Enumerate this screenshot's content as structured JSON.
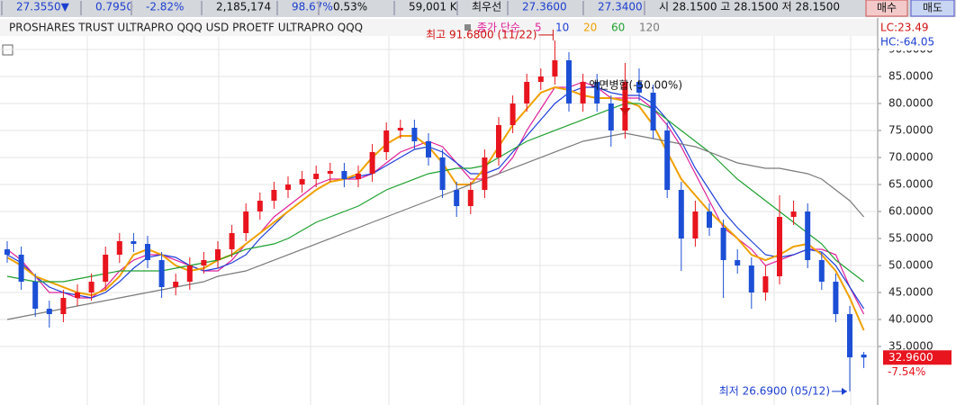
{
  "toolbar": {
    "items": [
      {
        "text": "27.3550▼",
        "color": "#1c3fd0"
      },
      {
        "text": "0.7950",
        "color": "#1c3fd0"
      },
      {
        "text": "-2.82%",
        "color": "#1c3fd0"
      },
      {
        "text": "2,185,174",
        "color": "#111"
      },
      {
        "text": "98.67%",
        "color": "#1c3fd0"
      },
      {
        "text": "0.53%",
        "color": "#111"
      },
      {
        "text": "59,001 K",
        "color": "#111"
      },
      {
        "text": "최우선",
        "color": "#111"
      },
      {
        "text": "27.3600",
        "color": "#1c3fd0"
      },
      {
        "text": "27.3400",
        "color": "#1c3fd0"
      },
      {
        "text": "시 28.1500 고 28.1500 저 28.1500",
        "color": "#111"
      }
    ],
    "buy": "매수",
    "sell": "매도"
  },
  "chart_data": {
    "type": "candlestick",
    "title": "PROSHARES TRUST ULTRAPRO QQQ USD  PROETF ULTRAPRO QQQ",
    "ma_label": "종가 단순",
    "up_color": "#e8141e",
    "down_color": "#1c4fd6",
    "open": [
      53,
      52,
      47,
      42,
      41,
      44,
      45,
      47,
      52,
      54.5,
      54,
      51,
      46,
      47,
      50,
      51,
      53,
      56,
      60,
      62,
      64,
      65,
      66,
      67,
      67.5,
      66,
      67,
      71,
      75,
      75.5,
      73,
      70,
      64,
      61,
      64,
      70,
      76,
      80,
      84,
      85,
      88,
      80,
      84,
      80,
      75,
      84,
      82,
      75,
      64,
      55,
      60,
      57,
      51,
      50,
      45,
      48,
      59,
      60,
      51,
      47,
      41,
      33.5
    ],
    "high": [
      54.5,
      53.5,
      48.5,
      43.5,
      45.5,
      46.5,
      48.5,
      53.5,
      56,
      56,
      55.5,
      52.5,
      48.5,
      51.5,
      52.5,
      54.5,
      57.5,
      61.5,
      63.5,
      65.5,
      66.5,
      67.5,
      68.5,
      69,
      69,
      68.5,
      72.5,
      76.5,
      77,
      77,
      74.5,
      71.5,
      65.5,
      65.5,
      71.5,
      77.5,
      81.5,
      85.5,
      86.5,
      91.68,
      89.5,
      85.5,
      85.5,
      81.5,
      87.5,
      86.5,
      83.5,
      76.5,
      65.5,
      62,
      61.5,
      58.5,
      53,
      51.5,
      50,
      63,
      62,
      61.5,
      52.5,
      48.5,
      42.5,
      34
    ],
    "low": [
      50.5,
      45.5,
      40.5,
      38.5,
      39.5,
      42.5,
      43.5,
      45.5,
      50.5,
      52.5,
      49.5,
      44,
      44.5,
      45.5,
      48.5,
      49.5,
      51.5,
      54.5,
      58.5,
      60.5,
      62.5,
      63.5,
      64.5,
      65.5,
      64.5,
      64.5,
      65.5,
      69.5,
      73.5,
      71.5,
      68.5,
      62.5,
      59,
      59.5,
      62.5,
      68.5,
      74.5,
      78.5,
      82.5,
      83.5,
      78.5,
      78.5,
      78.5,
      72,
      73.5,
      80.5,
      73.5,
      62.5,
      49,
      53.5,
      55.5,
      44,
      48.5,
      42,
      43.5,
      46.5,
      57.5,
      49.5,
      45.5,
      39.5,
      26.69,
      31
    ],
    "close": [
      52,
      47,
      42,
      41,
      44,
      45,
      47,
      52,
      54.5,
      54,
      51,
      46,
      47,
      50,
      51,
      53,
      56,
      60,
      62,
      64,
      65,
      66,
      67,
      67.5,
      66,
      67,
      71,
      75,
      75.5,
      73,
      70,
      64,
      61,
      64,
      70,
      76,
      80,
      84,
      85,
      88,
      80,
      84,
      80,
      75,
      84,
      82,
      75,
      64,
      55,
      60,
      57,
      51,
      50,
      45,
      48,
      59,
      60,
      51,
      47,
      41,
      33,
      32.96
    ],
    "series": [
      {
        "name": "5",
        "color": "#e0209a",
        "values": [
          53,
          51,
          48,
          45,
          45,
          44,
          44,
          46,
          49,
          51,
          52,
          52,
          51,
          50,
          49,
          49,
          51,
          54,
          56,
          59,
          61,
          63,
          65,
          66,
          66,
          66,
          67,
          69,
          71,
          72,
          73,
          72,
          69,
          66,
          66,
          67,
          70,
          75,
          79,
          83,
          83,
          84,
          83,
          81,
          81,
          81,
          79,
          76,
          72,
          67,
          62,
          57,
          55,
          53,
          50,
          51,
          52,
          53,
          53,
          52,
          46,
          41
        ]
      },
      {
        "name": "10",
        "color": "#1f3fd8",
        "values": [
          52,
          50.5,
          48,
          46,
          45,
          44.5,
          44,
          45,
          47,
          49.5,
          51.5,
          52,
          51.5,
          50,
          49,
          49.5,
          50.5,
          52,
          55,
          57.5,
          60,
          62,
          64,
          65.5,
          66,
          66.5,
          67,
          68.5,
          70,
          71.5,
          72,
          71,
          69,
          67,
          67,
          68,
          71,
          74,
          77,
          80,
          82,
          83,
          83,
          82,
          81.5,
          81.5,
          80,
          77,
          73,
          68,
          64,
          60,
          57,
          54.5,
          52,
          51.5,
          52,
          53,
          52.5,
          50,
          46,
          42
        ]
      },
      {
        "name": "20",
        "color": "#f0a000",
        "values": [
          51.5,
          50,
          48,
          47,
          46,
          45,
          44.5,
          45.5,
          48,
          52,
          53,
          52,
          50,
          49,
          49.5,
          51,
          52,
          54,
          56,
          58,
          60,
          62,
          64,
          65.5,
          66,
          67,
          70,
          72.5,
          74,
          74,
          72,
          69,
          65,
          65,
          68,
          72,
          76,
          79,
          82,
          83,
          82.5,
          81.5,
          81,
          81,
          80.5,
          79.5,
          76,
          71,
          66,
          63,
          60,
          57.5,
          55,
          52,
          51,
          52,
          53.5,
          54,
          52,
          49,
          44,
          38
        ]
      },
      {
        "name": "60",
        "color": "#1fa030",
        "values": [
          48,
          47.5,
          47,
          47,
          47,
          47.5,
          48,
          48.5,
          49,
          49,
          49,
          49,
          49.5,
          50,
          50.5,
          51,
          52,
          53,
          53.5,
          54,
          55,
          56.5,
          58,
          59,
          60,
          61,
          62.5,
          64,
          65,
          66,
          67,
          67.5,
          68,
          68,
          68.5,
          70,
          71.5,
          73,
          74,
          75,
          76,
          77,
          78,
          79,
          80,
          80,
          79,
          77,
          75,
          73,
          71,
          68.5,
          66,
          64,
          62,
          60,
          58,
          56,
          54,
          51,
          49,
          47
        ]
      },
      {
        "name": "120",
        "color": "#7a7a7a",
        "values": [
          40,
          40.5,
          41,
          41.5,
          42,
          42.5,
          43,
          43.5,
          44,
          44.5,
          45,
          45.5,
          46,
          46.5,
          47,
          48,
          48.5,
          49,
          50,
          51,
          52,
          53,
          54,
          55,
          56,
          57,
          58,
          59,
          60,
          61,
          62,
          63,
          64,
          65,
          66,
          67,
          68,
          69,
          70,
          71,
          72,
          73,
          73.5,
          74,
          74.5,
          74,
          73.5,
          73,
          72.5,
          72,
          71,
          70,
          69,
          68.5,
          68,
          68,
          67.5,
          67,
          66,
          64,
          62,
          59
        ]
      }
    ],
    "ylim": [
      24.17,
      95.83
    ],
    "yticks": [
      {
        "value": 35,
        "label": "35.0000"
      },
      {
        "value": 40,
        "label": "40.0000"
      },
      {
        "value": 45,
        "label": "45.0000"
      },
      {
        "value": 50,
        "label": "50.0000"
      },
      {
        "value": 55,
        "label": "55.0000"
      },
      {
        "value": 60,
        "label": "60.0000"
      },
      {
        "value": 65,
        "label": "65.0000"
      },
      {
        "value": 70,
        "label": "70.0000"
      },
      {
        "value": 75,
        "label": "75.0000"
      },
      {
        "value": 80,
        "label": "80.0000"
      },
      {
        "value": 85,
        "label": "85.0000"
      },
      {
        "value": 90,
        "label": "90.0000"
      }
    ],
    "grid": true,
    "high_label": "최고 91.6800 (11/22)",
    "low_label": "최저 26.6900 (05/12)",
    "split_label": "액면병합(-50.00%)",
    "lc": "LC:23.49",
    "hc": "HC:-64.05",
    "last_price": {
      "value": 32.96,
      "label": "32.9600"
    },
    "change": "-7.54%"
  }
}
